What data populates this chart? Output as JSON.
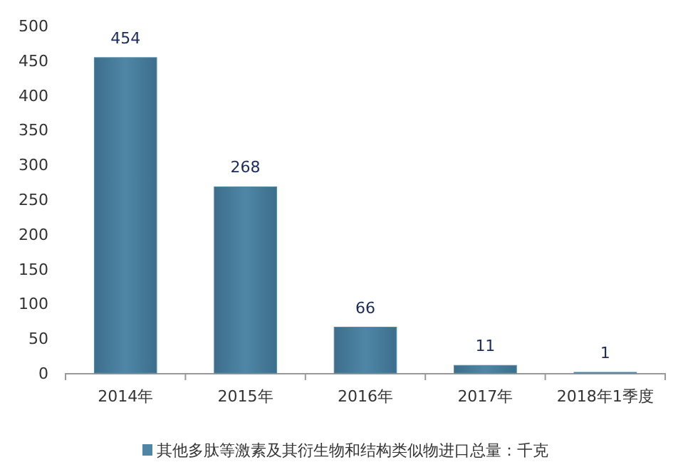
{
  "chart_data": {
    "type": "bar",
    "categories": [
      "2014年",
      "2015年",
      "2016年",
      "2017年",
      "2018年1季度"
    ],
    "series": [
      {
        "name": "其他多肽等激素及其衍生物和结构类似物进口总量：千克",
        "color": "#4f86a6",
        "values": [
          454,
          268,
          66,
          11,
          1
        ]
      }
    ],
    "ylim": [
      0,
      500
    ],
    "yticks": [
      0,
      50,
      100,
      150,
      200,
      250,
      300,
      350,
      400,
      450,
      500
    ],
    "data_labels": true,
    "legend": "bottom",
    "grid": false
  }
}
